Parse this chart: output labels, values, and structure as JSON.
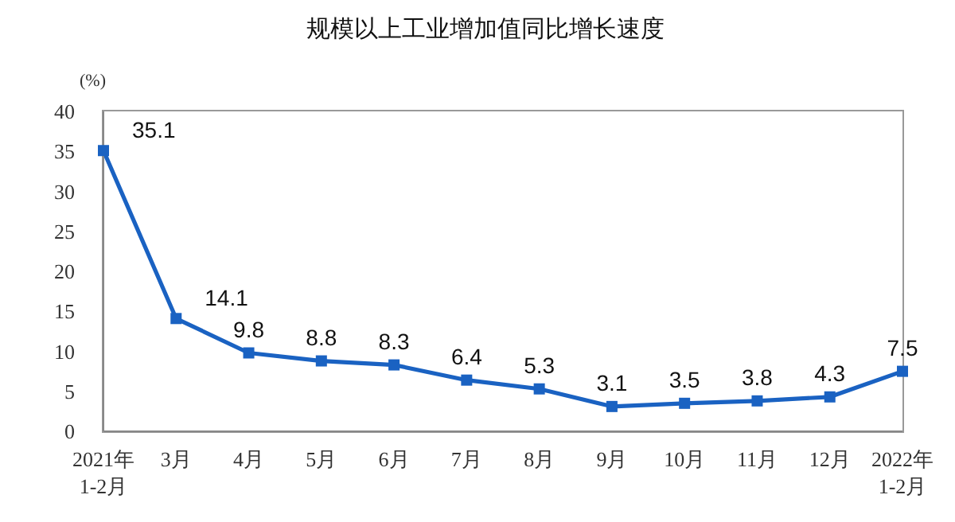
{
  "chart_data": {
    "type": "line",
    "title": "规模以上工业增加值同比增长速度",
    "ylabel": "(%)",
    "categories": [
      "2021年\n1-2月",
      "3月",
      "4月",
      "5月",
      "6月",
      "7月",
      "8月",
      "9月",
      "10月",
      "11月",
      "12月",
      "2022年\n1-2月"
    ],
    "series": [
      {
        "color": "#1a62c2",
        "values": [
          35.1,
          14.1,
          9.8,
          8.8,
          8.3,
          6.4,
          5.3,
          3.1,
          3.5,
          3.8,
          4.3,
          7.5
        ]
      }
    ],
    "ylim": [
      0,
      40
    ],
    "yticks": [
      0,
      5,
      10,
      15,
      20,
      25,
      30,
      35,
      40
    ],
    "grid": false,
    "marker": "square",
    "line_style": "solid",
    "data_labels": true
  }
}
